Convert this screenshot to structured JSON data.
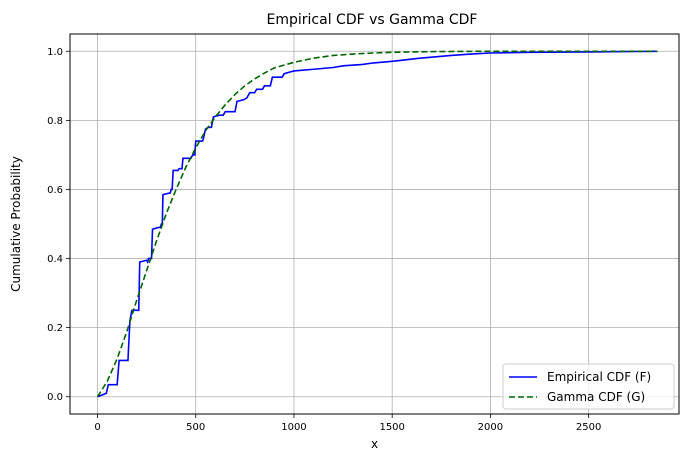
{
  "chart_data": {
    "type": "line",
    "title": "Empirical CDF vs Gamma CDF",
    "xlabel": "x",
    "ylabel": "Cumulative Probability",
    "xlim": [
      -140,
      2960
    ],
    "ylim": [
      -0.05,
      1.05
    ],
    "xticks": [
      0,
      500,
      1000,
      1500,
      2000,
      2500
    ],
    "yticks": [
      0.0,
      0.2,
      0.4,
      0.6,
      0.8,
      1.0
    ],
    "xtick_labels": [
      "0",
      "500",
      "1000",
      "1500",
      "2000",
      "2500"
    ],
    "ytick_labels": [
      "0.0",
      "0.2",
      "0.4",
      "0.6",
      "0.8",
      "1.0"
    ],
    "grid": true,
    "legend_position": "lower-right",
    "series": [
      {
        "name": "Empirical CDF (F)",
        "style": "solid-step",
        "color": "#0000ff",
        "points": [
          [
            0,
            0.0
          ],
          [
            45,
            0.01
          ],
          [
            55,
            0.035
          ],
          [
            100,
            0.035
          ],
          [
            110,
            0.105
          ],
          [
            155,
            0.105
          ],
          [
            165,
            0.22
          ],
          [
            175,
            0.25
          ],
          [
            210,
            0.25
          ],
          [
            215,
            0.39
          ],
          [
            250,
            0.395
          ],
          [
            255,
            0.39
          ],
          [
            260,
            0.4
          ],
          [
            275,
            0.4
          ],
          [
            280,
            0.485
          ],
          [
            310,
            0.49
          ],
          [
            320,
            0.49
          ],
          [
            325,
            0.5
          ],
          [
            330,
            0.5
          ],
          [
            333,
            0.585
          ],
          [
            370,
            0.59
          ],
          [
            375,
            0.6
          ],
          [
            380,
            0.6
          ],
          [
            385,
            0.655
          ],
          [
            410,
            0.655
          ],
          [
            415,
            0.66
          ],
          [
            430,
            0.66
          ],
          [
            435,
            0.69
          ],
          [
            475,
            0.69
          ],
          [
            485,
            0.7
          ],
          [
            495,
            0.7
          ],
          [
            500,
            0.74
          ],
          [
            535,
            0.74
          ],
          [
            540,
            0.75
          ],
          [
            550,
            0.775
          ],
          [
            565,
            0.78
          ],
          [
            580,
            0.78
          ],
          [
            590,
            0.81
          ],
          [
            620,
            0.815
          ],
          [
            640,
            0.815
          ],
          [
            650,
            0.825
          ],
          [
            700,
            0.825
          ],
          [
            710,
            0.855
          ],
          [
            745,
            0.86
          ],
          [
            760,
            0.865
          ],
          [
            775,
            0.88
          ],
          [
            800,
            0.88
          ],
          [
            810,
            0.89
          ],
          [
            840,
            0.89
          ],
          [
            850,
            0.9
          ],
          [
            880,
            0.9
          ],
          [
            890,
            0.925
          ],
          [
            940,
            0.925
          ],
          [
            950,
            0.935
          ],
          [
            980,
            0.94
          ],
          [
            1000,
            0.943
          ],
          [
            1100,
            0.948
          ],
          [
            1200,
            0.953
          ],
          [
            1250,
            0.958
          ],
          [
            1350,
            0.962
          ],
          [
            1400,
            0.966
          ],
          [
            1500,
            0.971
          ],
          [
            1580,
            0.976
          ],
          [
            1640,
            0.98
          ],
          [
            1700,
            0.983
          ],
          [
            1800,
            0.988
          ],
          [
            1900,
            0.992
          ],
          [
            2000,
            0.995
          ],
          [
            2200,
            0.997
          ],
          [
            2500,
            0.998
          ],
          [
            2850,
            1.0
          ]
        ]
      },
      {
        "name": "Gamma CDF (G)",
        "style": "dashed",
        "color": "#006400",
        "points": [
          [
            0,
            0.0
          ],
          [
            50,
            0.045
          ],
          [
            100,
            0.11
          ],
          [
            150,
            0.19
          ],
          [
            200,
            0.28
          ],
          [
            250,
            0.365
          ],
          [
            300,
            0.45
          ],
          [
            350,
            0.53
          ],
          [
            400,
            0.6
          ],
          [
            450,
            0.665
          ],
          [
            500,
            0.72
          ],
          [
            550,
            0.77
          ],
          [
            600,
            0.81
          ],
          [
            650,
            0.845
          ],
          [
            700,
            0.875
          ],
          [
            750,
            0.9
          ],
          [
            800,
            0.92
          ],
          [
            850,
            0.937
          ],
          [
            900,
            0.952
          ],
          [
            1000,
            0.968
          ],
          [
            1100,
            0.98
          ],
          [
            1200,
            0.988
          ],
          [
            1300,
            0.992
          ],
          [
            1400,
            0.995
          ],
          [
            1500,
            0.997
          ],
          [
            1700,
            0.999
          ],
          [
            2000,
            1.0
          ],
          [
            2850,
            1.0
          ]
        ]
      }
    ]
  }
}
